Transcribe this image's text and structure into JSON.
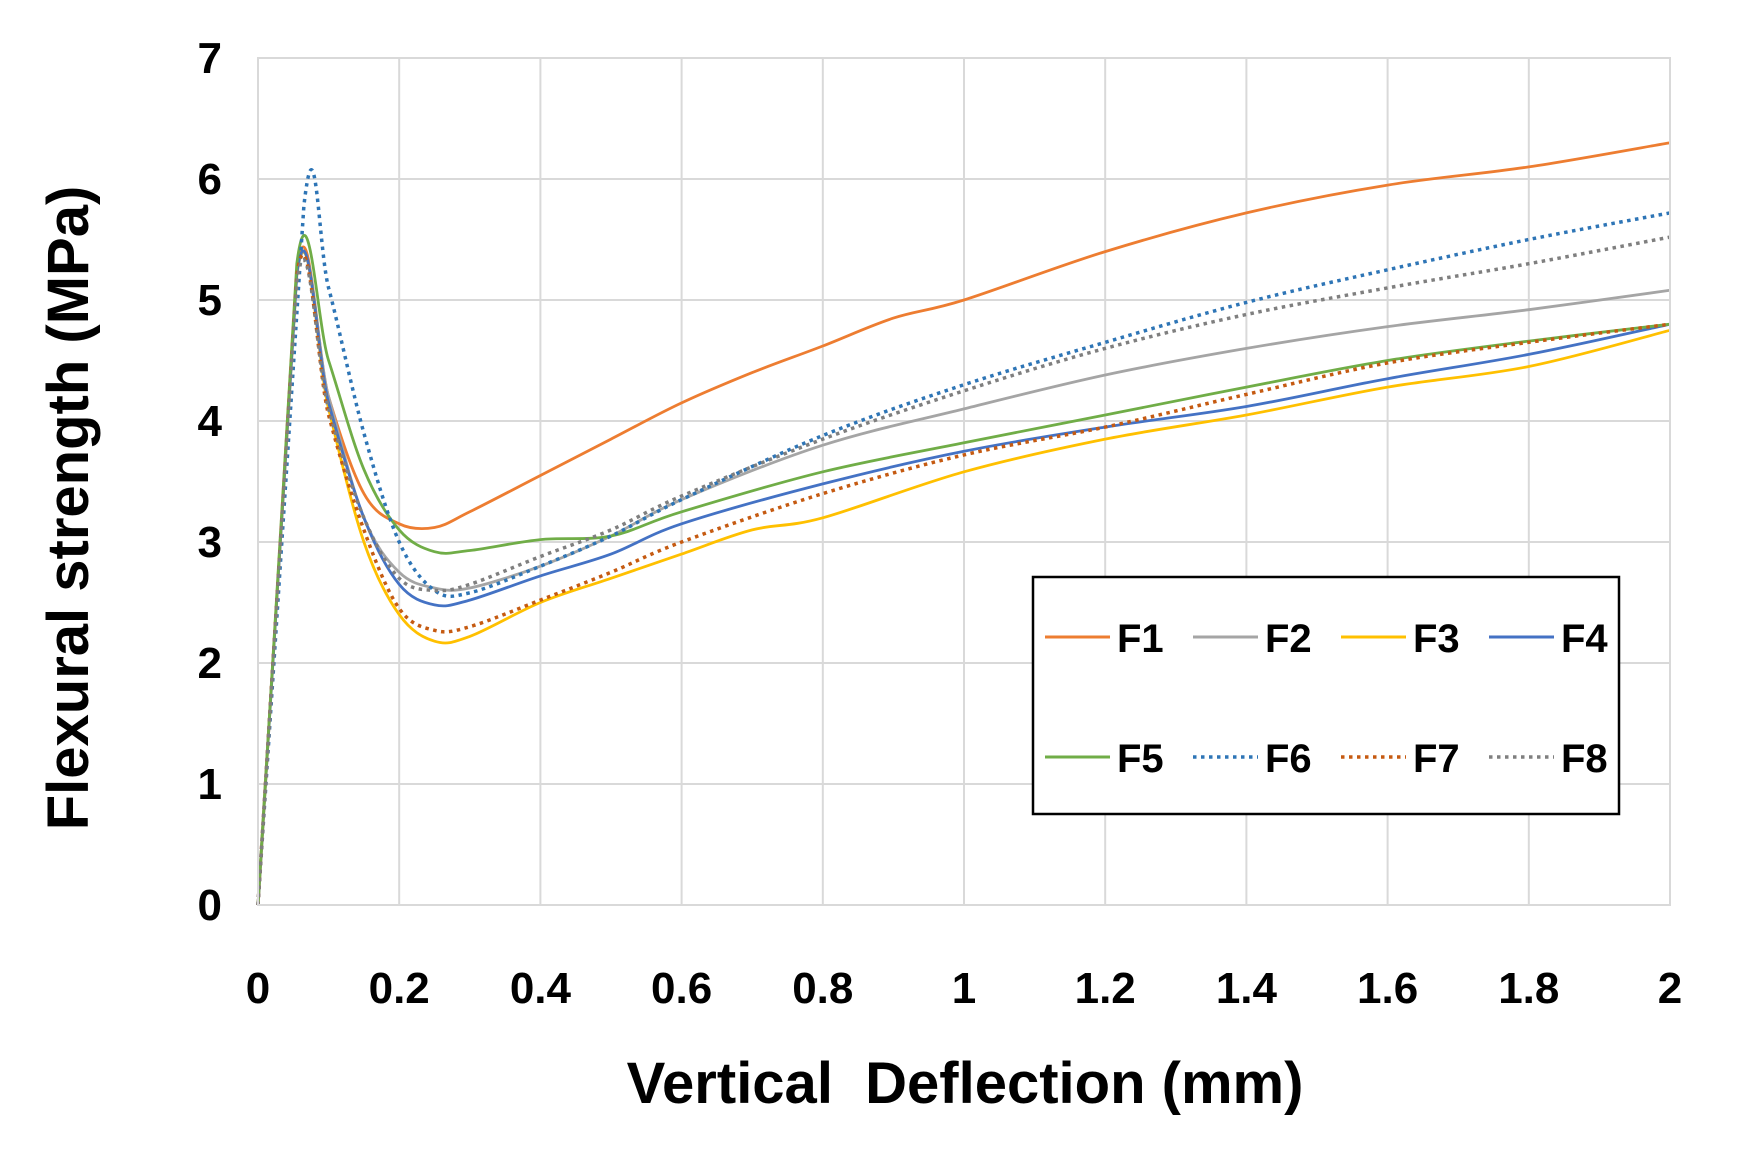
{
  "chart_data": {
    "type": "line",
    "title": "",
    "xlabel": "Vertical  Deflection (mm)",
    "ylabel": "Flexural strength (MPa)",
    "xlim": [
      0,
      2
    ],
    "ylim": [
      0,
      7
    ],
    "grid": true,
    "legend_position": "center-right",
    "x_ticks": [
      "0",
      "0.2",
      "0.4",
      "0.6",
      "0.8",
      "1",
      "1.2",
      "1.4",
      "1.6",
      "1.8",
      "2"
    ],
    "y_ticks": [
      "0",
      "1",
      "2",
      "3",
      "4",
      "5",
      "6",
      "7"
    ],
    "series": [
      {
        "name": "F1",
        "color": "#ED7D31",
        "dash": "solid",
        "x": [
          0,
          0.055,
          0.1,
          0.15,
          0.2,
          0.25,
          0.3,
          0.4,
          0.5,
          0.6,
          0.7,
          0.8,
          0.9,
          1.0,
          1.2,
          1.4,
          1.6,
          1.8,
          2.0
        ],
        "y": [
          0,
          5.25,
          4.2,
          3.4,
          3.15,
          3.12,
          3.25,
          3.55,
          3.85,
          4.15,
          4.4,
          4.62,
          4.85,
          5.0,
          5.4,
          5.72,
          5.95,
          6.1,
          6.3
        ]
      },
      {
        "name": "F2",
        "color": "#A5A5A5",
        "dash": "solid",
        "x": [
          0,
          0.055,
          0.1,
          0.15,
          0.2,
          0.25,
          0.3,
          0.4,
          0.5,
          0.6,
          0.8,
          1.0,
          1.2,
          1.4,
          1.6,
          1.8,
          2.0
        ],
        "y": [
          0,
          5.2,
          4.2,
          3.2,
          2.75,
          2.62,
          2.62,
          2.8,
          3.05,
          3.35,
          3.8,
          4.1,
          4.38,
          4.6,
          4.78,
          4.92,
          5.08
        ]
      },
      {
        "name": "F3",
        "color": "#FFC000",
        "dash": "solid",
        "x": [
          0,
          0.055,
          0.1,
          0.15,
          0.2,
          0.25,
          0.3,
          0.4,
          0.5,
          0.6,
          0.7,
          0.8,
          1.0,
          1.2,
          1.4,
          1.6,
          1.8,
          2.0
        ],
        "y": [
          0,
          5.22,
          4.1,
          3.0,
          2.4,
          2.18,
          2.22,
          2.5,
          2.7,
          2.9,
          3.1,
          3.2,
          3.58,
          3.85,
          4.05,
          4.28,
          4.45,
          4.75
        ]
      },
      {
        "name": "F4",
        "color": "#4472C4",
        "dash": "solid",
        "x": [
          0,
          0.055,
          0.1,
          0.15,
          0.2,
          0.25,
          0.3,
          0.4,
          0.5,
          0.6,
          0.8,
          1.0,
          1.2,
          1.4,
          1.6,
          1.8,
          2.0
        ],
        "y": [
          0,
          5.22,
          4.15,
          3.2,
          2.65,
          2.48,
          2.52,
          2.72,
          2.9,
          3.15,
          3.48,
          3.75,
          3.95,
          4.12,
          4.35,
          4.55,
          4.8
        ]
      },
      {
        "name": "F5",
        "color": "#70AD47",
        "dash": "solid",
        "x": [
          0,
          0.055,
          0.1,
          0.15,
          0.2,
          0.25,
          0.3,
          0.4,
          0.5,
          0.6,
          0.8,
          1.0,
          1.2,
          1.4,
          1.6,
          1.8,
          2.0
        ],
        "y": [
          0,
          5.3,
          4.5,
          3.6,
          3.1,
          2.92,
          2.93,
          3.02,
          3.05,
          3.25,
          3.58,
          3.82,
          4.05,
          4.28,
          4.5,
          4.66,
          4.8
        ]
      },
      {
        "name": "F6",
        "color": "#2E75B6",
        "dash": "dotted",
        "x": [
          0,
          0.065,
          0.1,
          0.15,
          0.2,
          0.25,
          0.3,
          0.4,
          0.5,
          0.6,
          0.8,
          1.0,
          1.2,
          1.4,
          1.6,
          1.8,
          2.0
        ],
        "y": [
          0,
          5.78,
          5.1,
          3.9,
          3.0,
          2.6,
          2.58,
          2.8,
          3.05,
          3.35,
          3.88,
          4.3,
          4.65,
          4.98,
          5.25,
          5.5,
          5.72
        ]
      },
      {
        "name": "F7",
        "color": "#C55A11",
        "dash": "dotted",
        "x": [
          0,
          0.055,
          0.1,
          0.15,
          0.2,
          0.25,
          0.3,
          0.4,
          0.5,
          0.6,
          0.8,
          1.0,
          1.2,
          1.4,
          1.6,
          1.8,
          2.0
        ],
        "y": [
          0,
          5.2,
          4.05,
          3.1,
          2.45,
          2.27,
          2.3,
          2.52,
          2.75,
          3.0,
          3.4,
          3.72,
          3.95,
          4.22,
          4.48,
          4.65,
          4.8
        ]
      },
      {
        "name": "F8",
        "color": "#7F7F7F",
        "dash": "dotted",
        "x": [
          0,
          0.055,
          0.1,
          0.15,
          0.2,
          0.25,
          0.3,
          0.4,
          0.5,
          0.6,
          0.8,
          1.0,
          1.2,
          1.4,
          1.6,
          1.8,
          2.0
        ],
        "y": [
          0,
          5.15,
          4.1,
          3.2,
          2.7,
          2.6,
          2.65,
          2.88,
          3.1,
          3.38,
          3.85,
          4.25,
          4.6,
          4.88,
          5.1,
          5.3,
          5.52
        ]
      }
    ]
  }
}
